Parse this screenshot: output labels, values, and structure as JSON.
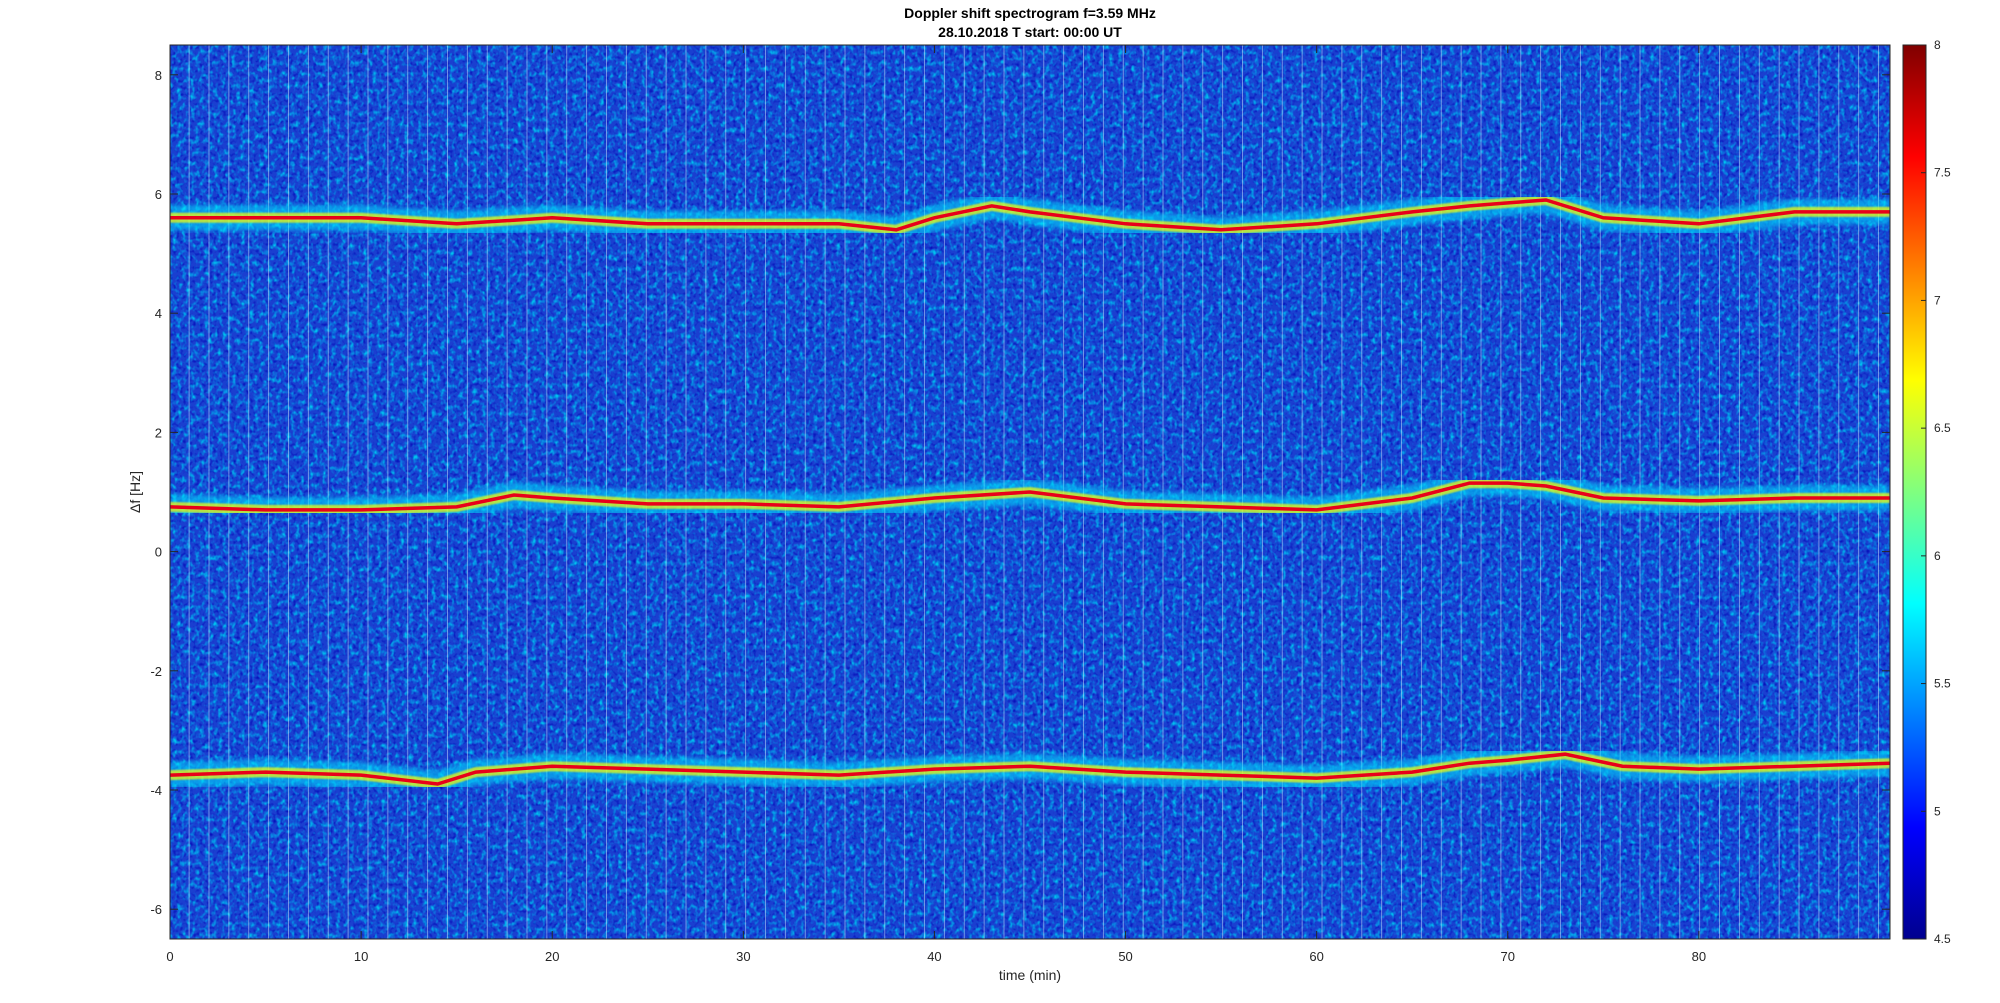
{
  "chart_data": {
    "type": "heatmap",
    "title": "Doppler shift spectrogram f=3.59 MHz",
    "subtitle": "28.10.2018    T start: 00:00 UT",
    "xlabel": "time (min)",
    "ylabel": "Δf [Hz]",
    "xlim": [
      0,
      90
    ],
    "ylim": [
      -6.5,
      8.5
    ],
    "xticks": [
      0,
      10,
      20,
      30,
      40,
      50,
      60,
      70,
      80
    ],
    "yticks": [
      -6,
      -4,
      -2,
      0,
      2,
      4,
      6,
      8
    ],
    "colorbar": {
      "colormap": "jet",
      "range": [
        4.5,
        8
      ],
      "ticks": [
        4.5,
        5,
        5.5,
        6,
        6.5,
        7,
        7.5,
        8
      ]
    },
    "colormap_stops": [
      "#00008f",
      "#0000ff",
      "#00ffff",
      "#ffff00",
      "#ff0000",
      "#800000"
    ],
    "background_color": "#1a3fd0",
    "series": [
      {
        "x": [
          0,
          5,
          10,
          15,
          20,
          25,
          30,
          35,
          38,
          40,
          43,
          45,
          50,
          55,
          60,
          65,
          68,
          70,
          72,
          75,
          80,
          85,
          90
        ],
        "y": [
          5.6,
          5.6,
          5.6,
          5.5,
          5.6,
          5.5,
          5.5,
          5.5,
          5.4,
          5.6,
          5.8,
          5.7,
          5.5,
          5.4,
          5.5,
          5.7,
          5.8,
          5.85,
          5.9,
          5.6,
          5.5,
          5.7,
          5.7
        ]
      },
      {
        "x": [
          0,
          5,
          10,
          15,
          18,
          20,
          25,
          30,
          35,
          40,
          45,
          50,
          55,
          60,
          65,
          68,
          70,
          72,
          75,
          80,
          85,
          90
        ],
        "y": [
          0.75,
          0.7,
          0.7,
          0.75,
          0.95,
          0.9,
          0.8,
          0.8,
          0.75,
          0.9,
          1.0,
          0.8,
          0.75,
          0.7,
          0.9,
          1.15,
          1.15,
          1.1,
          0.9,
          0.85,
          0.9,
          0.9
        ]
      },
      {
        "x": [
          0,
          5,
          10,
          14,
          16,
          20,
          25,
          30,
          35,
          40,
          45,
          50,
          55,
          60,
          65,
          68,
          70,
          73,
          76,
          80,
          85,
          90
        ],
        "y": [
          -3.75,
          -3.7,
          -3.75,
          -3.9,
          -3.7,
          -3.6,
          -3.65,
          -3.7,
          -3.75,
          -3.65,
          -3.6,
          -3.7,
          -3.75,
          -3.8,
          -3.7,
          -3.55,
          -3.5,
          -3.4,
          -3.6,
          -3.65,
          -3.6,
          -3.55
        ]
      }
    ]
  }
}
